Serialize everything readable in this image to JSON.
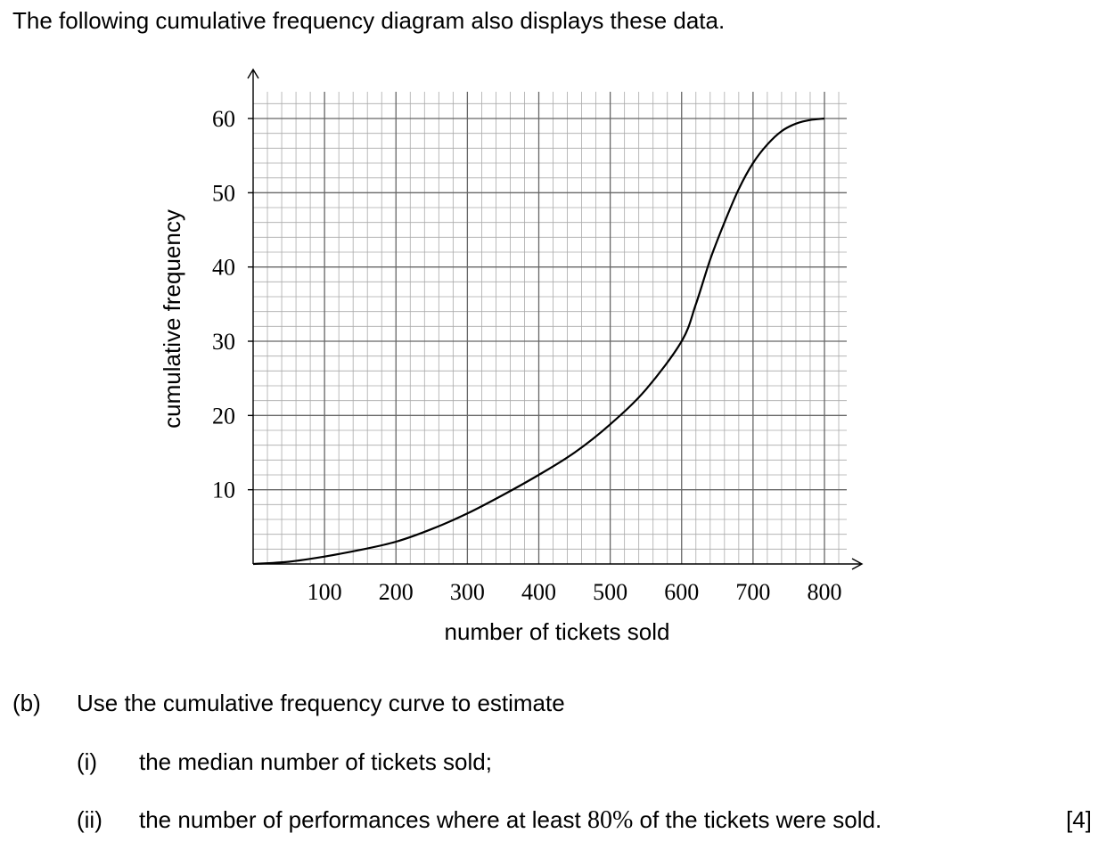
{
  "intro": "The following cumulative frequency diagram also displays these data.",
  "chart_data": {
    "type": "line",
    "xlabel": "number of tickets sold",
    "ylabel": "cumulative frequency",
    "xlim": [
      0,
      800
    ],
    "ylim": [
      0,
      60
    ],
    "x_ticks": [
      100,
      200,
      300,
      400,
      500,
      600,
      700,
      800
    ],
    "y_ticks": [
      10,
      20,
      30,
      40,
      50,
      60
    ],
    "grid": true,
    "series": [
      {
        "x": [
          0,
          50,
          100,
          150,
          200,
          250,
          300,
          350,
          400,
          450,
          500,
          550,
          600,
          620,
          640,
          660,
          680,
          700,
          720,
          740,
          760,
          780,
          800
        ],
        "y": [
          0,
          0.3,
          1,
          1.9,
          3,
          4.7,
          6.8,
          9.3,
          12,
          15,
          18.8,
          23.5,
          30,
          35,
          41,
          46,
          50.5,
          54,
          56.5,
          58.3,
          59.3,
          59.8,
          60
        ]
      }
    ]
  },
  "question": {
    "part_b_label": "(b)",
    "part_b_text": "Use the cumulative frequency curve to estimate",
    "part_i_label": "(i)",
    "part_i_text": "the median number of tickets sold;",
    "part_ii_label": "(ii)",
    "part_ii_text_before": "the number of performances where at least",
    "part_ii_value": "80%",
    "part_ii_text_after": "of the tickets were sold.",
    "marks": "[4]"
  }
}
